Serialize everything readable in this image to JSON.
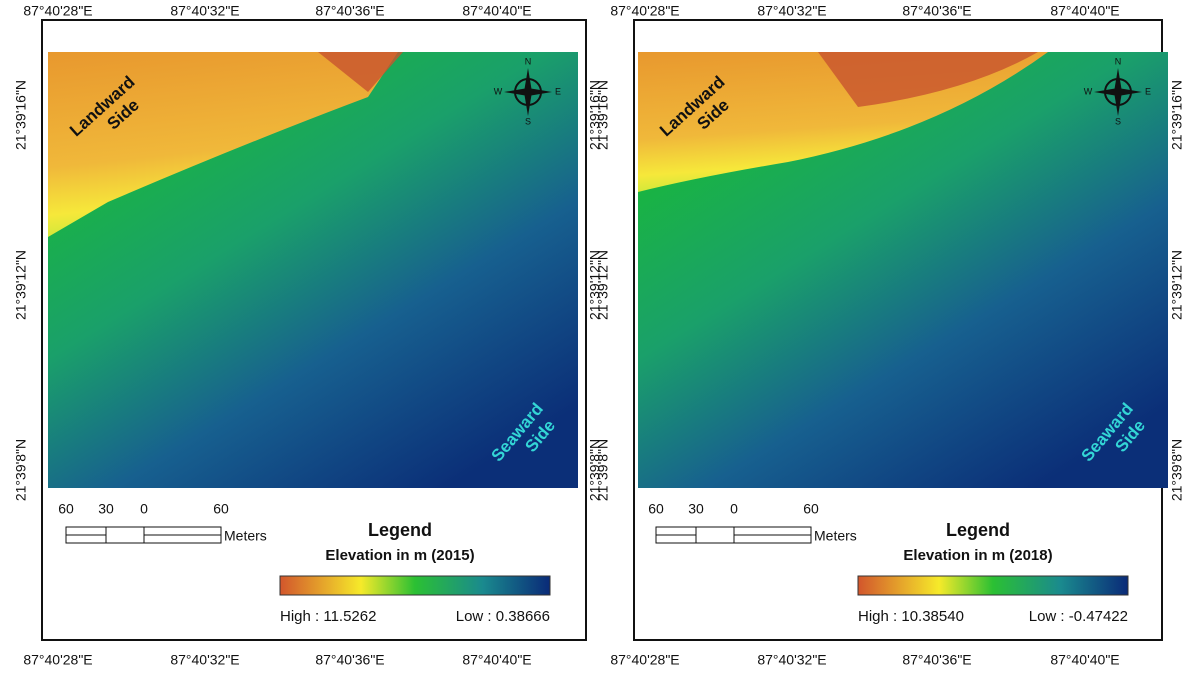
{
  "panels": [
    {
      "top_labels": [
        "87°40'28\"E",
        "87°40'32\"E",
        "87°40'36\"E",
        "87°40'40\"E"
      ],
      "bottom_labels": [
        "87°40'28\"E",
        "87°40'32\"E",
        "87°40'36\"E",
        "87°40'40\"E"
      ],
      "left_labels": [
        "21°39'16\"N",
        "21°39'12\"N",
        "21°39'8\"N"
      ],
      "right_labels": [
        "21°39'16\"N",
        "21°39'12\"N",
        "21°39'8\"N"
      ],
      "landward": [
        "Landward",
        "Side"
      ],
      "seaward": [
        "Seaward",
        "Side"
      ],
      "compass": {
        "n": "N",
        "s": "S",
        "e": "E",
        "w": "W"
      },
      "scale": {
        "ticks": [
          "60",
          "30",
          "0",
          "60"
        ],
        "unit": "Meters"
      },
      "legend": {
        "title": "Legend",
        "subtitle": "Elevation in m (2015)",
        "high": "High : 11.5262",
        "low": "Low : 0.38666"
      }
    },
    {
      "top_labels": [
        "87°40'28\"E",
        "87°40'32\"E",
        "87°40'36\"E",
        "87°40'40\"E"
      ],
      "bottom_labels": [
        "87°40'28\"E",
        "87°40'32\"E",
        "87°40'36\"E",
        "87°40'40\"E"
      ],
      "left_labels": [
        "21°39'16\"N",
        "21°39'12\"N",
        "21°39'8\"N"
      ],
      "right_labels": [
        "21°39'16\"N",
        "21°39'12\"N",
        "21°39'8\"N"
      ],
      "landward": [
        "Landward",
        "Side"
      ],
      "seaward": [
        "Seaward",
        "Side"
      ],
      "compass": {
        "n": "N",
        "s": "S",
        "e": "E",
        "w": "W"
      },
      "scale": {
        "ticks": [
          "60",
          "30",
          "0",
          "60"
        ],
        "unit": "Meters"
      },
      "legend": {
        "title": "Legend",
        "subtitle": "Elevation in m (2018)",
        "high": "High : 10.38540",
        "low": "Low : -0.47422"
      }
    }
  ]
}
